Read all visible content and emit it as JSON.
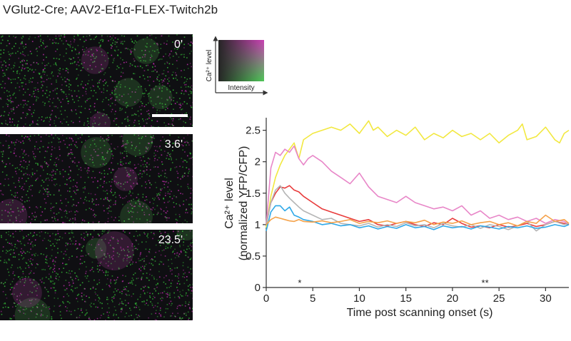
{
  "title": "VGlut2-Cre; AAV2-Ef1α-FLEX-Twitch2b",
  "panels": [
    {
      "time": "0'"
    },
    {
      "time": "3.6'"
    },
    {
      "time": "23.5'"
    }
  ],
  "colormap_legend": {
    "y_label": "Ca²⁺ level",
    "x_label": "Intensity",
    "colors": {
      "low": "#111111",
      "green": "#2fbf3a",
      "magenta": "#c21fa8"
    }
  },
  "chart_data": {
    "type": "line",
    "title": "",
    "xlabel": "Time post scanning onset (s)",
    "ylabel_line1": "Ca²⁺ level",
    "ylabel_line2": "(normalized YFP/CFP)",
    "xlim": [
      0,
      32.5
    ],
    "ylim": [
      0,
      2.7
    ],
    "x_ticks": [
      0,
      5,
      10,
      15,
      20,
      25,
      30
    ],
    "y_ticks": [
      0,
      0.5,
      1,
      1.5,
      2,
      2.5
    ],
    "y_tick_labels": [
      "0",
      "0.5",
      "1",
      "1.5",
      "2",
      "2.5"
    ],
    "annotations": [
      {
        "x": 3.6,
        "text": "*"
      },
      {
        "x": 23.5,
        "text": "**"
      }
    ],
    "series": [
      {
        "color": "#f2e840",
        "x": [
          0,
          0.5,
          1,
          1.5,
          2,
          2.5,
          3,
          3.5,
          4,
          5,
          6,
          7,
          8,
          9,
          10,
          10.5,
          11,
          11.5,
          12,
          13,
          14,
          15,
          16,
          17,
          18,
          19,
          20,
          21,
          22,
          23,
          24,
          25,
          26,
          27,
          27.5,
          28,
          29,
          30,
          31,
          31.5,
          32,
          32.5
        ],
        "y": [
          0.95,
          1.45,
          1.75,
          1.95,
          2.1,
          2.2,
          2.3,
          2.05,
          2.35,
          2.45,
          2.5,
          2.55,
          2.5,
          2.6,
          2.45,
          2.55,
          2.65,
          2.5,
          2.55,
          2.4,
          2.5,
          2.42,
          2.55,
          2.35,
          2.45,
          2.38,
          2.5,
          2.4,
          2.45,
          2.35,
          2.45,
          2.3,
          2.42,
          2.5,
          2.6,
          2.35,
          2.4,
          2.55,
          2.35,
          2.3,
          2.45,
          2.5
        ]
      },
      {
        "color": "#e887c8",
        "x": [
          0,
          0.5,
          1,
          1.5,
          2,
          2.5,
          3,
          3.5,
          4,
          4.5,
          5,
          6,
          7,
          8,
          9,
          10,
          11,
          12,
          13,
          14,
          15,
          16,
          17,
          18,
          19,
          20,
          21,
          22,
          23,
          24,
          25,
          26,
          27,
          28,
          29,
          30,
          31,
          32,
          32.5
        ],
        "y": [
          1.0,
          1.9,
          2.15,
          2.1,
          2.2,
          2.15,
          2.25,
          2.05,
          1.95,
          2.05,
          2.1,
          2.0,
          1.85,
          1.75,
          1.65,
          1.82,
          1.6,
          1.45,
          1.4,
          1.35,
          1.45,
          1.35,
          1.3,
          1.25,
          1.28,
          1.22,
          1.3,
          1.15,
          1.22,
          1.1,
          1.15,
          1.08,
          1.12,
          1.05,
          1.1,
          1.02,
          1.08,
          1.05,
          1.0
        ]
      },
      {
        "color": "#e83b3b",
        "x": [
          0,
          0.5,
          1,
          1.5,
          2,
          2.5,
          3,
          3.5,
          4,
          5,
          6,
          7,
          8,
          9,
          10,
          11,
          12,
          13,
          14,
          15,
          16,
          17,
          18,
          19,
          20,
          21,
          22,
          23,
          24,
          25,
          26,
          27,
          28,
          29,
          30,
          31,
          32,
          32.5
        ],
        "y": [
          1.0,
          1.35,
          1.5,
          1.6,
          1.58,
          1.62,
          1.55,
          1.52,
          1.45,
          1.35,
          1.25,
          1.2,
          1.15,
          1.1,
          1.05,
          1.08,
          1.0,
          0.98,
          1.02,
          1.05,
          1.0,
          0.97,
          1.03,
          1.0,
          1.1,
          1.02,
          0.96,
          0.98,
          0.95,
          1.0,
          0.96,
          0.98,
          1.02,
          0.97,
          1.0,
          1.05,
          1.02,
          1.0
        ]
      },
      {
        "color": "#b5b5b5",
        "x": [
          0,
          0.5,
          1,
          1.5,
          2,
          2.5,
          3,
          3.5,
          4,
          5,
          6,
          7,
          8,
          9,
          10,
          11,
          12,
          13,
          14,
          15,
          16,
          17,
          18,
          19,
          20,
          21,
          22,
          23,
          24,
          25,
          26,
          27,
          28,
          29,
          30,
          31,
          32,
          32.5
        ],
        "y": [
          1.0,
          1.35,
          1.55,
          1.62,
          1.5,
          1.42,
          1.35,
          1.28,
          1.22,
          1.15,
          1.08,
          1.1,
          1.02,
          1.0,
          0.98,
          1.02,
          0.96,
          1.0,
          0.97,
          1.03,
          0.98,
          1.0,
          0.95,
          1.02,
          0.98,
          0.96,
          1.0,
          0.94,
          1.0,
          0.97,
          0.92,
          0.98,
          1.05,
          0.9,
          1.0,
          1.05,
          1.0,
          1.02
        ]
      },
      {
        "color": "#2ea8e8",
        "x": [
          0,
          0.5,
          1,
          1.5,
          2,
          2.5,
          3,
          3.5,
          4,
          5,
          6,
          7,
          8,
          9,
          10,
          11,
          12,
          13,
          14,
          15,
          16,
          17,
          18,
          19,
          20,
          21,
          22,
          23,
          24,
          25,
          26,
          27,
          28,
          29,
          30,
          31,
          32,
          32.5
        ],
        "y": [
          0.9,
          1.2,
          1.3,
          1.3,
          1.22,
          1.28,
          1.15,
          1.12,
          1.08,
          1.05,
          1.0,
          1.02,
          0.98,
          1.0,
          0.95,
          0.98,
          0.93,
          0.97,
          0.94,
          1.0,
          0.95,
          0.97,
          0.92,
          0.98,
          0.95,
          0.97,
          0.93,
          0.98,
          0.96,
          0.93,
          0.97,
          0.95,
          0.98,
          0.94,
          0.96,
          1.0,
          0.97,
          1.0
        ]
      },
      {
        "color": "#f5a24a",
        "x": [
          0,
          0.5,
          1,
          1.5,
          2,
          2.5,
          3,
          3.5,
          4,
          5,
          6,
          7,
          8,
          9,
          10,
          11,
          12,
          13,
          14,
          15,
          16,
          17,
          18,
          19,
          20,
          21,
          22,
          23,
          24,
          25,
          26,
          27,
          28,
          29,
          30,
          31,
          32,
          32.5
        ],
        "y": [
          1.0,
          1.08,
          1.12,
          1.1,
          1.08,
          1.06,
          1.05,
          1.08,
          1.05,
          1.04,
          1.06,
          1.03,
          1.05,
          1.08,
          1.02,
          1.05,
          1.03,
          1.06,
          1.02,
          1.05,
          1.03,
          1.07,
          1.0,
          1.04,
          1.02,
          1.06,
          1.0,
          1.03,
          1.05,
          1.0,
          1.03,
          0.98,
          1.05,
          1.02,
          1.15,
          1.05,
          1.08,
          1.02
        ]
      }
    ]
  }
}
